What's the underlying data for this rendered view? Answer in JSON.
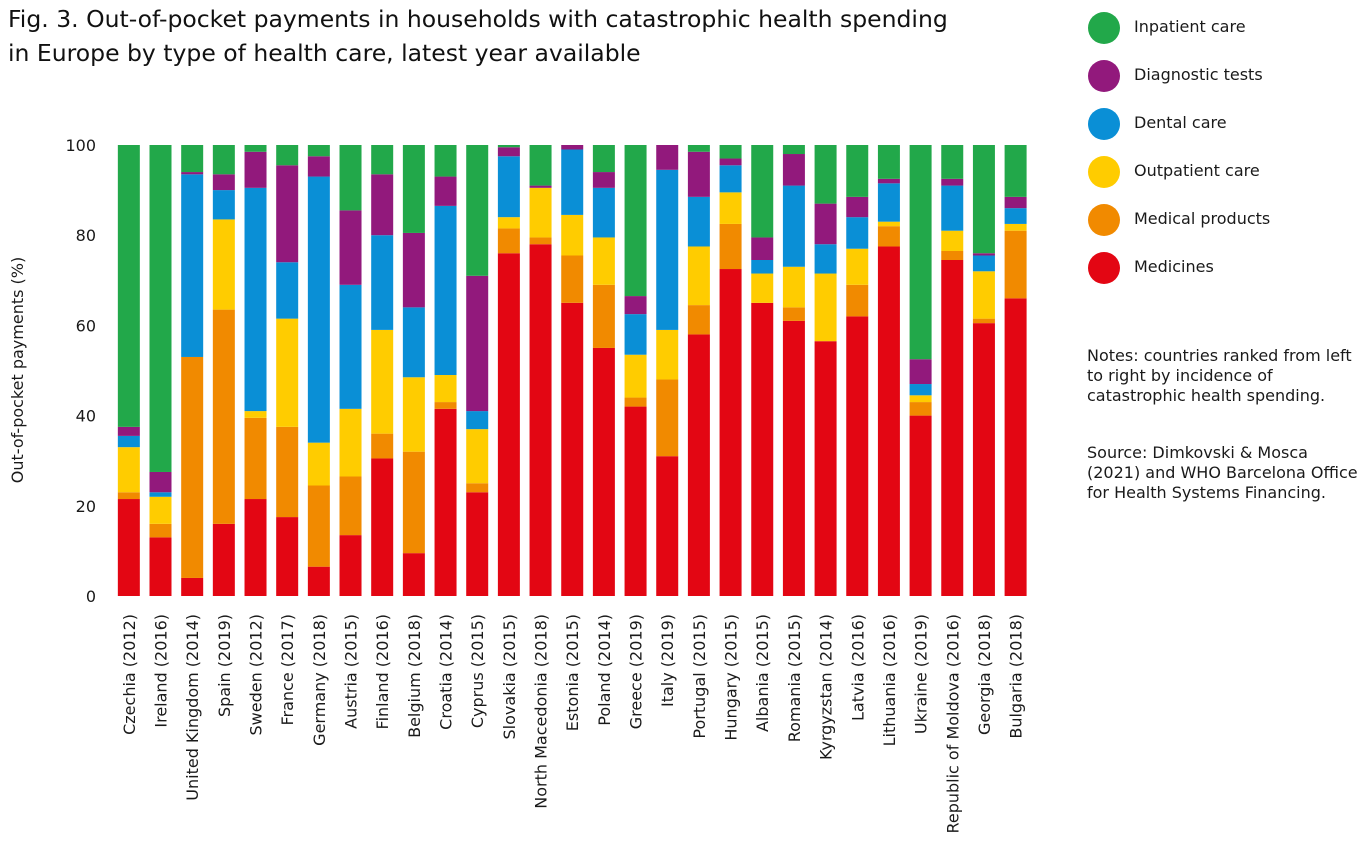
{
  "title": "Fig. 3. Out-of-pocket payments in households with catastrophic health spending\nin Europe by type of health care, latest year available",
  "notes": "Notes: countries ranked from left to right by incidence of catastrophic health spending.",
  "source": "Source: Dimkovski & Mosca (2021) and WHO Barcelona Office for Health Systems Financing.",
  "chart_data": {
    "type": "bar",
    "stacked": true,
    "ylabel": "Out-of-pocket payments (%)",
    "xlabel": "",
    "ylim": [
      0,
      100
    ],
    "yticks": [
      "0",
      "20",
      "40",
      "60",
      "80",
      "100"
    ],
    "grid": false,
    "legend_position": "top-right",
    "categories": [
      "Czechia (2012)",
      "Ireland (2016)",
      "United Kingdom (2014)",
      "Spain (2019)",
      "Sweden (2012)",
      "France (2017)",
      "Germany (2018)",
      "Austria (2015)",
      "Finland (2016)",
      "Belgium (2018)",
      "Croatia (2014)",
      "Cyprus (2015)",
      "Slovakia (2015)",
      "North Macedonia (2018)",
      "Estonia (2015)",
      "Poland (2014)",
      "Greece (2019)",
      "Italy (2019)",
      "Portugal (2015)",
      "Hungary (2015)",
      "Albania (2015)",
      "Romania (2015)",
      "Kyrgyzstan (2014)",
      "Latvia (2016)",
      "Lithuania (2016)",
      "Ukraine (2019)",
      "Republic of Moldova (2016)",
      "Georgia (2018)",
      "Bulgaria (2018)"
    ],
    "series": [
      {
        "name": "Medicines",
        "color": "#e30613",
        "values": [
          21.5,
          13,
          4,
          16,
          21.5,
          17.5,
          6.5,
          13.5,
          30.5,
          9.5,
          41.5,
          23,
          76,
          78,
          65,
          55,
          42,
          31,
          58,
          72.5,
          65,
          61,
          56.5,
          62,
          77.5,
          40,
          74.5,
          60.5,
          66
        ]
      },
      {
        "name": "Medical products",
        "color": "#f18a00",
        "values": [
          1.5,
          3,
          49,
          47.5,
          18,
          20,
          18,
          13,
          5.5,
          22.5,
          1.5,
          2,
          5.5,
          1.5,
          10.5,
          14,
          2,
          17,
          6.5,
          10,
          0,
          3,
          0,
          7,
          4.5,
          3,
          2,
          1,
          15
        ]
      },
      {
        "name": "Outpatient care",
        "color": "#ffcc00",
        "values": [
          10,
          6,
          0,
          20,
          1.5,
          24,
          9.5,
          15,
          23,
          16.5,
          6,
          12,
          2.5,
          11,
          9,
          10.5,
          9.5,
          11,
          13,
          7,
          6.5,
          9,
          15,
          8,
          1,
          1.5,
          4.5,
          10.5,
          1.5
        ]
      },
      {
        "name": "Dental care",
        "color": "#0a8fd6",
        "values": [
          2.5,
          1,
          40.5,
          6.5,
          49.5,
          12.5,
          59,
          27.5,
          21,
          15.5,
          37.5,
          4,
          13.5,
          0,
          14.5,
          11,
          9,
          35.5,
          11,
          6,
          3,
          18,
          6.5,
          7,
          8.5,
          2.5,
          10,
          3.5,
          3.5
        ]
      },
      {
        "name": "Diagnostic tests",
        "color": "#92197c",
        "values": [
          2,
          4.5,
          0.5,
          3.5,
          8,
          21.5,
          4.5,
          16.5,
          13.5,
          16.5,
          6.5,
          30,
          2,
          0.5,
          1,
          3.5,
          4,
          5.5,
          10,
          1.5,
          5,
          7,
          9,
          4.5,
          1,
          5.5,
          1.5,
          0.5,
          2.5
        ]
      },
      {
        "name": "Inpatient care",
        "color": "#22a84a",
        "values": [
          62.5,
          72.5,
          6,
          6.5,
          1.5,
          4.5,
          2.5,
          14.5,
          6.5,
          19.5,
          7,
          29,
          0.5,
          9,
          0,
          6,
          33.5,
          0,
          1.5,
          3,
          20.5,
          2,
          13,
          11.5,
          7.5,
          47.5,
          7.5,
          24,
          11.5
        ]
      }
    ]
  },
  "legend_order": [
    "Inpatient care",
    "Diagnostic tests",
    "Dental care",
    "Outpatient care",
    "Medical products",
    "Medicines"
  ]
}
